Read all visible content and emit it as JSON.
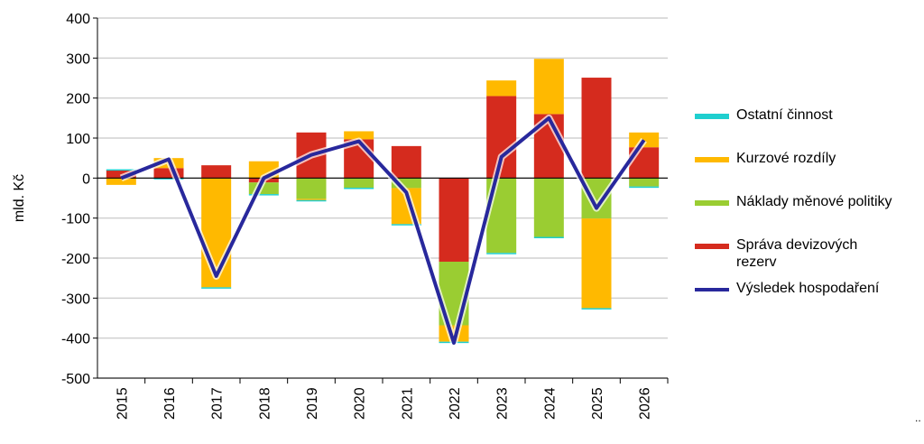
{
  "chart_data": {
    "type": "bar",
    "stacked": true,
    "ylabel": "mld. Kč",
    "ylim": [
      -500,
      400
    ],
    "yticks": [
      400,
      300,
      200,
      100,
      0,
      -100,
      -200,
      -300,
      -400,
      -500
    ],
    "grid": true,
    "legend_position": "right",
    "categories": [
      "2015",
      "2016",
      "2017",
      "2018",
      "2019",
      "2020",
      "2021",
      "2022",
      "2023",
      "2024",
      "2025",
      "2026"
    ],
    "series": [
      {
        "name": "Správa devizových rezerv",
        "type": "bar",
        "color": "#d52b1e",
        "values": [
          20,
          25,
          32,
          -11,
          114,
          97,
          80,
          -209,
          205,
          160,
          251,
          77
        ]
      },
      {
        "name": "Náklady měnové politiky",
        "type": "bar",
        "color": "#9acd32",
        "values": [
          0,
          0,
          0,
          -29,
          -52,
          -24,
          -25,
          -159,
          -187,
          -147,
          -101,
          -21
        ]
      },
      {
        "name": "Kurzové rozdíly",
        "type": "bar",
        "color": "#ffb900",
        "values": [
          -17,
          25,
          -273,
          42,
          -3,
          20,
          -90,
          -41,
          39,
          138,
          -224,
          37
        ]
      },
      {
        "name": "Ostatní činnost",
        "type": "bar",
        "color": "#1fcfcf",
        "values": [
          2,
          -3,
          -3,
          -3,
          -3,
          -2,
          -2,
          -3,
          -2,
          -2,
          -2,
          -2
        ]
      },
      {
        "name": "Výsledek hospodaření",
        "type": "line",
        "color": "#28289c",
        "values": [
          0,
          47,
          -245,
          0,
          58,
          92,
          -36,
          -412,
          53,
          150,
          -75,
          95
        ]
      }
    ],
    "legend_order": [
      "Ostatní činnost",
      "Kurzové rozdíly",
      "Náklady měnové politiky",
      "Správa devizových rezerv",
      "Výsledek hospodaření"
    ]
  },
  "footnote": ".."
}
